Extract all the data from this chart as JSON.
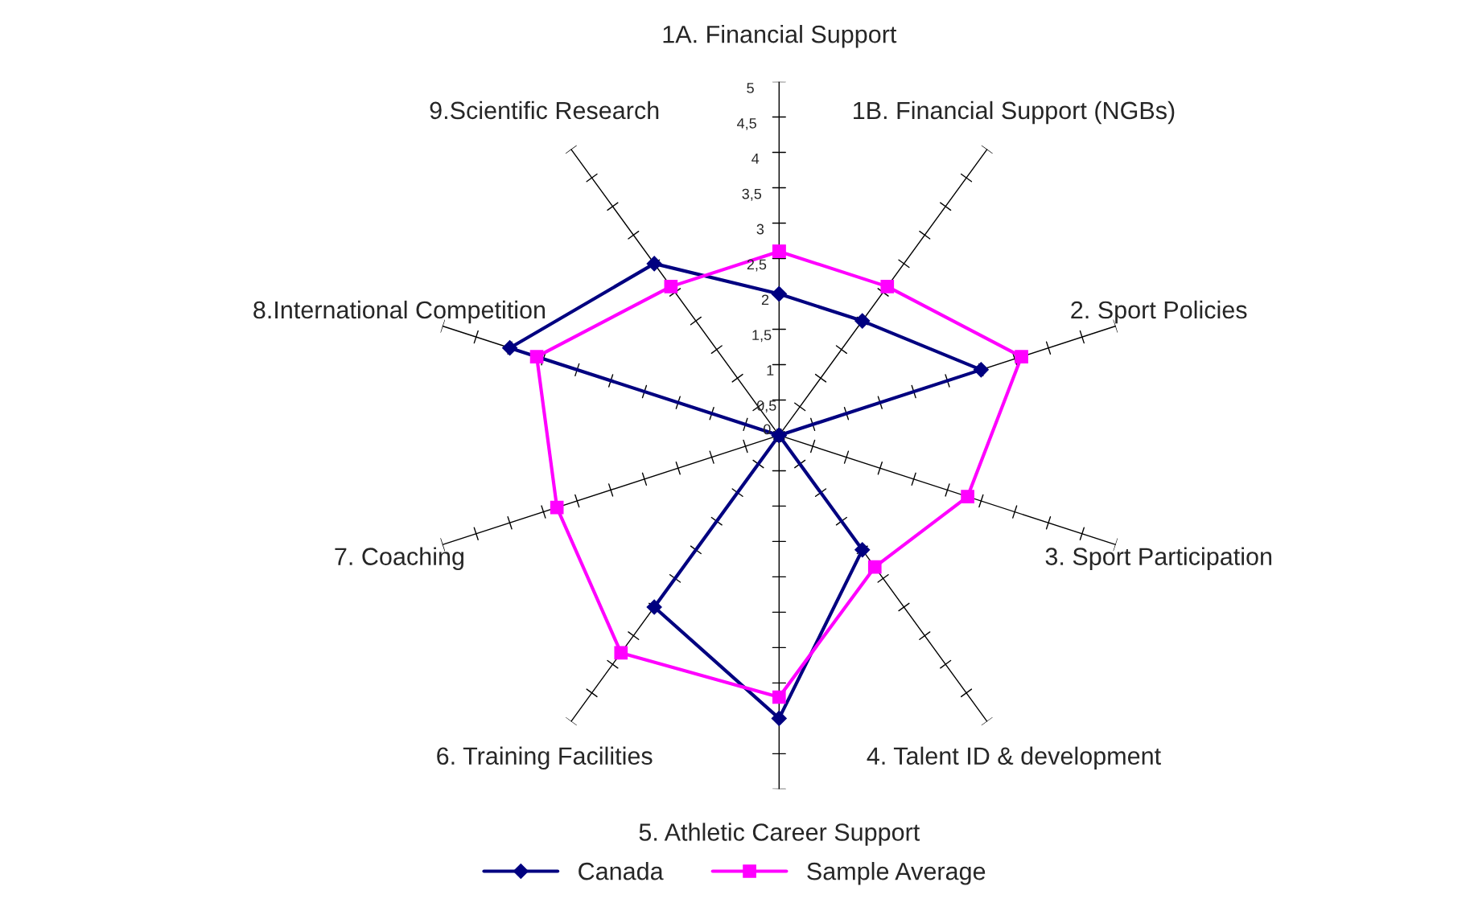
{
  "chart_data": {
    "type": "radar",
    "categories": [
      "1A. Financial Support",
      "1B. Financial Support (NGBs)",
      "2. Sport Policies",
      "3. Sport Participation",
      "4. Talent ID & development",
      "5. Athletic Career Support",
      "6. Training Facilities",
      "7. Coaching",
      "8.International Competition",
      "9.Scientific Research"
    ],
    "series": [
      {
        "name": "Canada",
        "color": "#000080",
        "marker": "diamond",
        "values": [
          2,
          2,
          3,
          0,
          2,
          4,
          3,
          0,
          4,
          3
        ]
      },
      {
        "name": "Sample Average",
        "color": "#ff00ff",
        "marker": "square",
        "values": [
          2.6,
          2.6,
          3.6,
          2.8,
          2.3,
          3.7,
          3.8,
          3.3,
          3.6,
          2.6
        ]
      }
    ],
    "ylim": [
      0,
      5
    ],
    "yticks": [
      0,
      {
        "value": 0.5,
        "label": "0,5"
      },
      1,
      {
        "value": 1.5,
        "label": "1,5"
      },
      2,
      {
        "value": 2.5,
        "label": "2,5"
      },
      3,
      {
        "value": 3.5,
        "label": "3,5"
      },
      4,
      {
        "value": 4.5,
        "label": "4,5"
      },
      5
    ],
    "grid": false,
    "legend": "bottom"
  }
}
